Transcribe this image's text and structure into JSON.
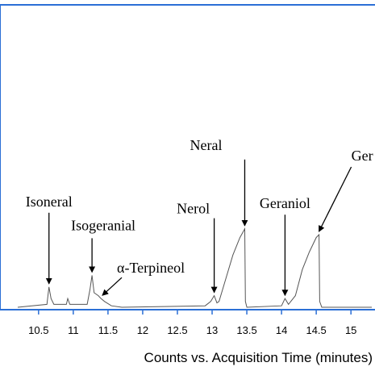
{
  "chart_data": {
    "type": "line",
    "title": "",
    "xlabel": "Counts vs. Acquisition Time (minutes)",
    "ylabel": "",
    "xlim": [
      10.2,
      15.3
    ],
    "ylim": [
      0,
      1
    ],
    "x_ticks": [
      "10.5",
      "11",
      "11.5",
      "12",
      "12.5",
      "13",
      "13.5",
      "14",
      "14.5",
      "15"
    ],
    "line_color": "#555555",
    "frame_color": "#2b6fd6",
    "series": [
      {
        "x": [
          10.2,
          10.62,
          10.65,
          10.68,
          10.72,
          10.9,
          10.92,
          10.95,
          11.2,
          11.24,
          11.27,
          11.3,
          11.36,
          11.4,
          11.45,
          11.55,
          11.7,
          12.9,
          12.98,
          13.03,
          13.07,
          13.1,
          13.2,
          13.3,
          13.4,
          13.47,
          13.48,
          13.5,
          14.0,
          14.05,
          14.1,
          14.2,
          14.3,
          14.4,
          14.5,
          14.54,
          14.55,
          14.58,
          15.3
        ],
        "y": [
          0.0,
          0.01,
          0.07,
          0.03,
          0.01,
          0.01,
          0.03,
          0.01,
          0.01,
          0.06,
          0.11,
          0.05,
          0.04,
          0.03,
          0.02,
          0.005,
          0.0,
          0.005,
          0.02,
          0.04,
          0.015,
          0.02,
          0.1,
          0.18,
          0.24,
          0.27,
          0.02,
          0.0,
          0.005,
          0.03,
          0.01,
          0.04,
          0.13,
          0.19,
          0.24,
          0.25,
          0.02,
          0.0,
          0.0
        ]
      }
    ],
    "annotations": [
      {
        "text": "Isoneral",
        "x": 10.65,
        "y": 0.07
      },
      {
        "text": "Isogeranial",
        "x": 11.27,
        "y": 0.11
      },
      {
        "text": "α-Terpineol",
        "x": 11.42,
        "y": 0.03
      },
      {
        "text": "Nerol",
        "x": 13.03,
        "y": 0.04
      },
      {
        "text": "Neral",
        "x": 13.47,
        "y": 0.27
      },
      {
        "text": "Geraniol",
        "x": 14.05,
        "y": 0.03
      },
      {
        "text": "Ger",
        "x": 14.54,
        "y": 0.25
      }
    ]
  }
}
